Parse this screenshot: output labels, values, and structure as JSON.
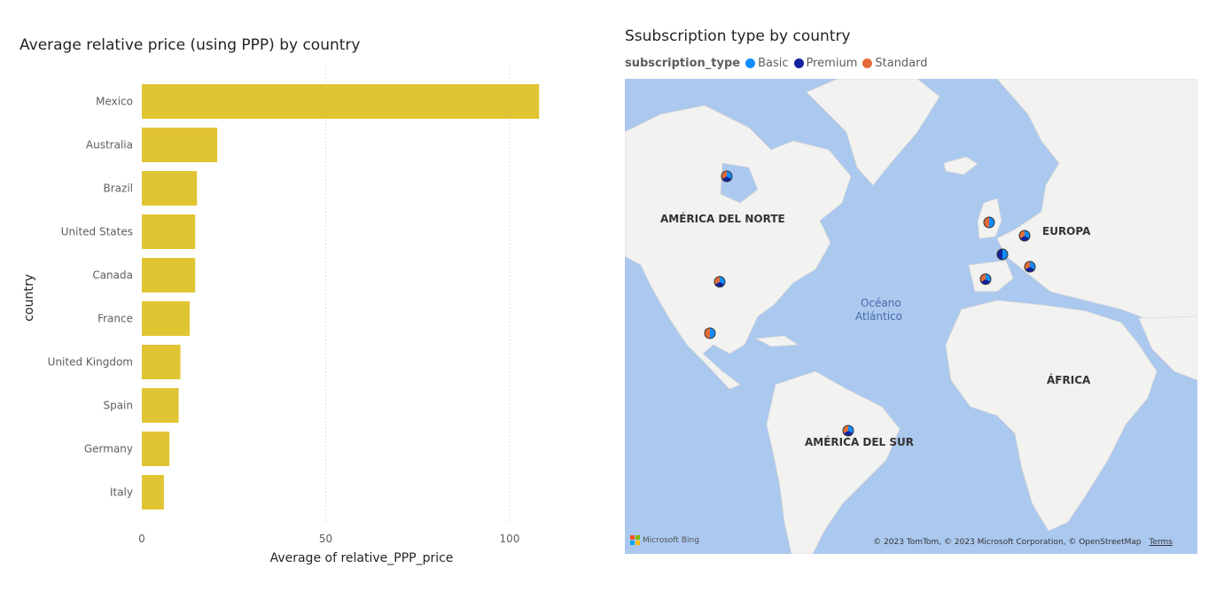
{
  "bar_visual": {
    "title": "Average relative price (using PPP) by country"
  },
  "map_visual": {
    "title": "Ssubscription type by country",
    "legend": {
      "title": "subscription_type",
      "items": [
        {
          "label": "Basic",
          "color": "#118dff"
        },
        {
          "label": "Premium",
          "color": "#12239e"
        },
        {
          "label": "Standard",
          "color": "#e66c37"
        }
      ]
    },
    "labels": {
      "north_america": "AMÉRICA DEL NORTE",
      "europe": "EUROPA",
      "ocean_line1": "Océano",
      "ocean_line2": "Atlántico",
      "africa": "ÁFRICA",
      "south_america": "AMÉRICA DEL SUR"
    },
    "attribution": "© 2023 TomTom, © 2023 Microsoft Corporation, © OpenStreetMap",
    "terms": "Terms",
    "bing": "Microsoft Bing",
    "colors": {
      "water": "#abc8ef",
      "land": "#f2f2f0"
    }
  },
  "chart_data": [
    {
      "type": "bar",
      "orientation": "horizontal",
      "title": "Average relative price (using PPP) by country",
      "xlabel": "Average of relative_PPP_price",
      "ylabel": "country",
      "categories": [
        "Mexico",
        "Australia",
        "Brazil",
        "United States",
        "Canada",
        "France",
        "United Kingdom",
        "Spain",
        "Germany",
        "Italy"
      ],
      "values": [
        108,
        20.5,
        15,
        14.5,
        14.5,
        13,
        10.5,
        10,
        7.5,
        6
      ],
      "xlim": [
        0,
        115
      ],
      "xticks": [
        0,
        50,
        100
      ],
      "color": "#e0c432",
      "grid": true
    },
    {
      "type": "map",
      "title": "Ssubscription type by country",
      "legend": [
        "Basic",
        "Premium",
        "Standard"
      ],
      "markers": [
        "Canada",
        "United States",
        "Mexico",
        "Brazil",
        "United Kingdom",
        "Germany",
        "France",
        "Spain",
        "Italy"
      ]
    }
  ]
}
